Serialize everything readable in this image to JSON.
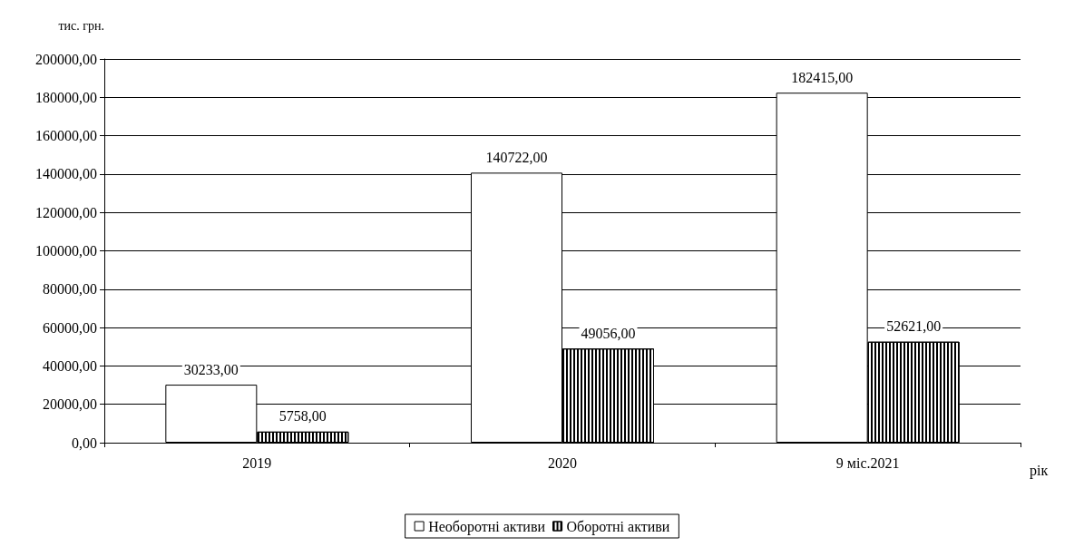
{
  "chart_data": {
    "type": "bar",
    "ylabel": "тис. грн.",
    "xlabel": "рік",
    "categories": [
      "2019",
      "2020",
      "9 міс.2021"
    ],
    "series": [
      {
        "name": "Необоротні активи",
        "color": "#ffffff",
        "values": [
          30233,
          140722,
          182415
        ],
        "value_labels": [
          "30233,00",
          "140722,00",
          "182415,00"
        ]
      },
      {
        "name": "Оборотні активи",
        "color": "#000000",
        "values": [
          5758,
          49056,
          52621
        ],
        "value_labels": [
          "5758,00",
          "49056,00",
          "52621,00"
        ]
      }
    ],
    "ylim": [
      0,
      200000
    ],
    "yticks": [
      {
        "value": 0,
        "label": "0,00"
      },
      {
        "value": 20000,
        "label": "20000,00"
      },
      {
        "value": 40000,
        "label": "40000,00"
      },
      {
        "value": 60000,
        "label": "60000,00"
      },
      {
        "value": 80000,
        "label": "80000,00"
      },
      {
        "value": 100000,
        "label": "100000,00"
      },
      {
        "value": 120000,
        "label": "120000,00"
      },
      {
        "value": 140000,
        "label": "140000,00"
      },
      {
        "value": 160000,
        "label": "160000,00"
      },
      {
        "value": 180000,
        "label": "180000,00"
      },
      {
        "value": 200000,
        "label": "200000,00"
      }
    ],
    "grid": "y",
    "legend": "bottom"
  }
}
